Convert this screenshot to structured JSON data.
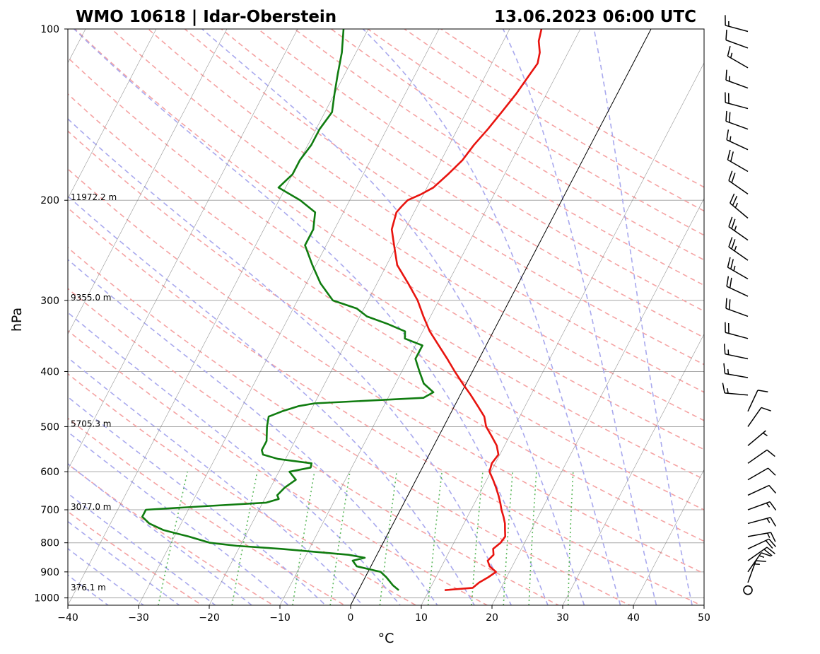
{
  "title_left": "WMO 10618 | Idar-Oberstein",
  "title_right": "13.06.2023 06:00 UTC",
  "chart_data": {
    "type": "skew-t",
    "xlabel": "°C",
    "ylabel": "hPa",
    "xlim": [
      -40,
      50
    ],
    "ylim": [
      1030,
      100
    ],
    "y_scale": "log",
    "x_ticks": [
      -40,
      -30,
      -20,
      -10,
      0,
      10,
      20,
      30,
      40,
      50
    ],
    "x_tick_labels": [
      "−40",
      "−30",
      "−20",
      "−10",
      "0",
      "10",
      "20",
      "30",
      "40",
      "50"
    ],
    "y_ticks": [
      100,
      200,
      300,
      400,
      500,
      600,
      700,
      800,
      900,
      1000
    ],
    "y_tick_labels": [
      "100",
      "200",
      "300",
      "400",
      "500",
      "600",
      "700",
      "800",
      "900",
      "1000"
    ],
    "height_labels": [
      {
        "pressure": 200,
        "text": "11972.2 m"
      },
      {
        "pressure": 300,
        "text": "9355.0 m"
      },
      {
        "pressure": 500,
        "text": "5705.3 m"
      },
      {
        "pressure": 700,
        "text": "3077.0 m"
      },
      {
        "pressure": 970,
        "text": "376.1 m"
      }
    ],
    "colors": {
      "temperature": "#e8140f",
      "dewpoint": "#107c10",
      "dry_adiabats": "#f5a3a3",
      "moist_adiabats": "#a9a9ee",
      "mixing_ratio": "#5cb85c",
      "isotherms": "#7a7a7a",
      "isobars": "#a8a8a8",
      "zero_isotherm": "#000000"
    },
    "temperature": [
      [
        969,
        12.2
      ],
      [
        960,
        16.0
      ],
      [
        940,
        16.5
      ],
      [
        920,
        17.4
      ],
      [
        900,
        18.1
      ],
      [
        880,
        16.8
      ],
      [
        860,
        16.1
      ],
      [
        840,
        16.5
      ],
      [
        820,
        16.0
      ],
      [
        800,
        16.6
      ],
      [
        780,
        16.8
      ],
      [
        760,
        16.3
      ],
      [
        740,
        15.8
      ],
      [
        720,
        15.1
      ],
      [
        700,
        14.3
      ],
      [
        680,
        13.6
      ],
      [
        660,
        12.8
      ],
      [
        640,
        11.9
      ],
      [
        620,
        10.9
      ],
      [
        600,
        9.8
      ],
      [
        580,
        9.5
      ],
      [
        560,
        9.8
      ],
      [
        540,
        8.9
      ],
      [
        520,
        7.5
      ],
      [
        500,
        6.0
      ],
      [
        480,
        5.0
      ],
      [
        460,
        3.3
      ],
      [
        440,
        1.5
      ],
      [
        420,
        -0.5
      ],
      [
        400,
        -2.5
      ],
      [
        380,
        -4.5
      ],
      [
        360,
        -6.7
      ],
      [
        340,
        -9.0
      ],
      [
        320,
        -11.0
      ],
      [
        300,
        -13.0
      ],
      [
        280,
        -15.6
      ],
      [
        260,
        -18.5
      ],
      [
        240,
        -20.4
      ],
      [
        225,
        -21.9
      ],
      [
        210,
        -22.5
      ],
      [
        205,
        -22.2
      ],
      [
        200,
        -21.8
      ],
      [
        195,
        -20.3
      ],
      [
        190,
        -19.1
      ],
      [
        180,
        -18.0
      ],
      [
        170,
        -17.0
      ],
      [
        160,
        -16.5
      ],
      [
        150,
        -15.7
      ],
      [
        140,
        -15.0
      ],
      [
        130,
        -14.3
      ],
      [
        120,
        -13.8
      ],
      [
        115,
        -13.5
      ],
      [
        110,
        -14.0
      ],
      [
        105,
        -15.0
      ],
      [
        100,
        -15.5
      ]
    ],
    "dewpoint": [
      [
        969,
        5.7
      ],
      [
        950,
        4.5
      ],
      [
        920,
        3.0
      ],
      [
        900,
        1.8
      ],
      [
        880,
        -2.0
      ],
      [
        860,
        -3.0
      ],
      [
        850,
        -1.5
      ],
      [
        840,
        -4.0
      ],
      [
        820,
        -14.0
      ],
      [
        810,
        -20.5
      ],
      [
        800,
        -24.5
      ],
      [
        780,
        -28.0
      ],
      [
        760,
        -32.0
      ],
      [
        740,
        -34.5
      ],
      [
        720,
        -36.0
      ],
      [
        700,
        -36.0
      ],
      [
        690,
        -28.0
      ],
      [
        680,
        -19.5
      ],
      [
        670,
        -18.0
      ],
      [
        660,
        -18.5
      ],
      [
        640,
        -18.0
      ],
      [
        620,
        -17.0
      ],
      [
        600,
        -18.5
      ],
      [
        590,
        -15.8
      ],
      [
        580,
        -16.0
      ],
      [
        570,
        -21.0
      ],
      [
        560,
        -23.5
      ],
      [
        550,
        -24.0
      ],
      [
        530,
        -24.0
      ],
      [
        500,
        -25.0
      ],
      [
        480,
        -25.5
      ],
      [
        470,
        -24.0
      ],
      [
        460,
        -22.0
      ],
      [
        455,
        -20.0
      ],
      [
        445,
        -5.0
      ],
      [
        435,
        -4.0
      ],
      [
        420,
        -6.0
      ],
      [
        400,
        -7.5
      ],
      [
        380,
        -9.0
      ],
      [
        360,
        -9.0
      ],
      [
        350,
        -12.0
      ],
      [
        340,
        -12.5
      ],
      [
        330,
        -15.5
      ],
      [
        320,
        -19.0
      ],
      [
        310,
        -21.0
      ],
      [
        300,
        -25.0
      ],
      [
        280,
        -28.0
      ],
      [
        260,
        -30.5
      ],
      [
        240,
        -33.0
      ],
      [
        225,
        -33.0
      ],
      [
        210,
        -34.0
      ],
      [
        200,
        -37.0
      ],
      [
        190,
        -41.0
      ],
      [
        180,
        -40.0
      ],
      [
        170,
        -40.0
      ],
      [
        160,
        -39.5
      ],
      [
        150,
        -39.5
      ],
      [
        140,
        -39.0
      ],
      [
        130,
        -40.0
      ],
      [
        120,
        -41.0
      ],
      [
        110,
        -42.0
      ],
      [
        100,
        -43.5
      ]
    ],
    "wind_barbs": [
      {
        "p": 969,
        "speed_kt": 0,
        "dir_deg": 0
      },
      {
        "p": 940,
        "speed_kt": 15,
        "dir_deg": 20
      },
      {
        "p": 900,
        "speed_kt": 15,
        "dir_deg": 35
      },
      {
        "p": 860,
        "speed_kt": 20,
        "dir_deg": 55
      },
      {
        "p": 820,
        "speed_kt": 20,
        "dir_deg": 65
      },
      {
        "p": 780,
        "speed_kt": 15,
        "dir_deg": 80
      },
      {
        "p": 740,
        "speed_kt": 15,
        "dir_deg": 75
      },
      {
        "p": 700,
        "speed_kt": 15,
        "dir_deg": 70
      },
      {
        "p": 660,
        "speed_kt": 10,
        "dir_deg": 65
      },
      {
        "p": 620,
        "speed_kt": 10,
        "dir_deg": 60
      },
      {
        "p": 580,
        "speed_kt": 10,
        "dir_deg": 55
      },
      {
        "p": 540,
        "speed_kt": 5,
        "dir_deg": 50
      },
      {
        "p": 500,
        "speed_kt": 10,
        "dir_deg": 35
      },
      {
        "p": 470,
        "speed_kt": 10,
        "dir_deg": 25
      },
      {
        "p": 440,
        "speed_kt": 15,
        "dir_deg": 275
      },
      {
        "p": 410,
        "speed_kt": 15,
        "dir_deg": 280
      },
      {
        "p": 380,
        "speed_kt": 15,
        "dir_deg": 282
      },
      {
        "p": 350,
        "speed_kt": 20,
        "dir_deg": 285
      },
      {
        "p": 320,
        "speed_kt": 20,
        "dir_deg": 290
      },
      {
        "p": 295,
        "speed_kt": 20,
        "dir_deg": 295
      },
      {
        "p": 275,
        "speed_kt": 25,
        "dir_deg": 300
      },
      {
        "p": 255,
        "speed_kt": 25,
        "dir_deg": 305
      },
      {
        "p": 235,
        "speed_kt": 25,
        "dir_deg": 305
      },
      {
        "p": 215,
        "speed_kt": 25,
        "dir_deg": 310
      },
      {
        "p": 195,
        "speed_kt": 20,
        "dir_deg": 305
      },
      {
        "p": 178,
        "speed_kt": 20,
        "dir_deg": 300
      },
      {
        "p": 163,
        "speed_kt": 15,
        "dir_deg": 295
      },
      {
        "p": 150,
        "speed_kt": 20,
        "dir_deg": 290
      },
      {
        "p": 138,
        "speed_kt": 20,
        "dir_deg": 285
      },
      {
        "p": 127,
        "speed_kt": 15,
        "dir_deg": 290
      },
      {
        "p": 117,
        "speed_kt": 15,
        "dir_deg": 300
      },
      {
        "p": 108,
        "speed_kt": 10,
        "dir_deg": 290
      },
      {
        "p": 101,
        "speed_kt": 15,
        "dir_deg": 285
      }
    ],
    "grid": true
  }
}
